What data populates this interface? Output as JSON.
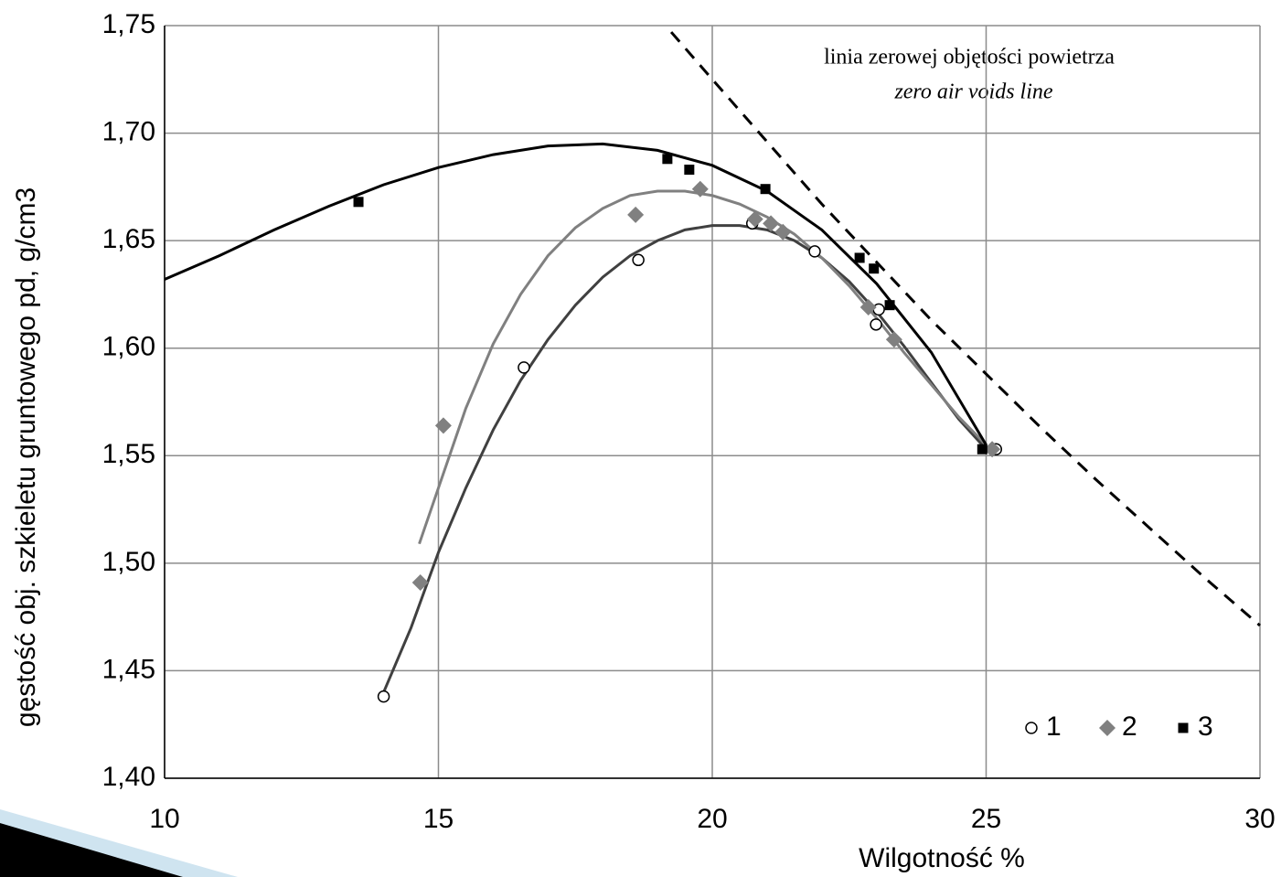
{
  "chart_data": {
    "type": "scatter",
    "x_label": "Wilgotność  %",
    "y_label": "gęstość obj. szkieletu gruntowego pd, g/cm3",
    "annotation": [
      "linia zerowej objętości powietrza",
      "zero air voids line"
    ],
    "xlim": [
      10,
      30
    ],
    "ylim": [
      1.4,
      1.75
    ],
    "xticks": [
      10,
      15,
      20,
      25,
      30
    ],
    "yticks": [
      {
        "value": 1.4,
        "label": "1,40"
      },
      {
        "value": 1.45,
        "label": "1,45"
      },
      {
        "value": 1.5,
        "label": "1,50"
      },
      {
        "value": 1.55,
        "label": "1,55"
      },
      {
        "value": 1.6,
        "label": "1,60"
      },
      {
        "value": 1.65,
        "label": "1,65"
      },
      {
        "value": 1.7,
        "label": "1,70"
      },
      {
        "value": 1.75,
        "label": "1,75"
      }
    ],
    "grid": true,
    "legend": "lower right",
    "series": [
      {
        "name": "1",
        "marker": "circle",
        "color": "#000000",
        "line_color": "#404040",
        "x": [
          14.0,
          16.56,
          18.65,
          20.73,
          21.87,
          22.99,
          23.04,
          25.18
        ],
        "values": [
          1.438,
          1.591,
          1.641,
          1.658,
          1.645,
          1.611,
          1.618,
          1.553
        ],
        "fit": {
          "x": [
            14.0,
            14.5,
            15,
            15.5,
            16,
            16.5,
            17,
            17.5,
            18,
            18.5,
            19,
            19.5,
            20,
            20.5,
            21,
            21.5,
            22,
            22.5,
            23,
            23.5,
            24,
            24.5,
            25
          ],
          "values": [
            1.44,
            1.47,
            1.505,
            1.535,
            1.562,
            1.585,
            1.604,
            1.62,
            1.633,
            1.643,
            1.65,
            1.655,
            1.657,
            1.657,
            1.655,
            1.65,
            1.642,
            1.631,
            1.617,
            1.601,
            1.584,
            1.567,
            1.553
          ]
        }
      },
      {
        "name": "2",
        "marker": "diamond",
        "color": "#808080",
        "line_color": "#808080",
        "x": [
          14.67,
          15.09,
          18.6,
          19.78,
          20.78,
          21.07,
          21.29,
          22.85,
          23.32,
          25.11
        ],
        "values": [
          1.491,
          1.564,
          1.662,
          1.674,
          1.66,
          1.658,
          1.654,
          1.619,
          1.604,
          1.553
        ],
        "fit": {
          "x": [
            14.65,
            15,
            15.5,
            16,
            16.5,
            17,
            17.5,
            18,
            18.5,
            19,
            19.5,
            20,
            20.5,
            21,
            21.5,
            22,
            22.5,
            23,
            23.5,
            24,
            24.5,
            25
          ],
          "values": [
            1.509,
            1.535,
            1.572,
            1.602,
            1.625,
            1.643,
            1.656,
            1.665,
            1.671,
            1.673,
            1.673,
            1.671,
            1.667,
            1.661,
            1.653,
            1.642,
            1.629,
            1.614,
            1.598,
            1.583,
            1.568,
            1.555
          ]
        }
      },
      {
        "name": "3",
        "marker": "square",
        "color": "#000000",
        "line_color": "#000000",
        "x": [
          13.54,
          19.18,
          19.58,
          20.97,
          22.69,
          22.95,
          23.24,
          24.93
        ],
        "values": [
          1.668,
          1.688,
          1.683,
          1.674,
          1.642,
          1.637,
          1.62,
          1.553
        ],
        "fit": {
          "x": [
            10,
            11,
            12,
            13,
            14,
            15,
            16,
            17,
            18,
            19,
            20,
            21,
            22,
            23,
            24,
            25
          ],
          "values": [
            1.632,
            1.643,
            1.655,
            1.666,
            1.676,
            1.684,
            1.69,
            1.694,
            1.695,
            1.692,
            1.685,
            1.673,
            1.655,
            1.63,
            1.598,
            1.555
          ]
        }
      }
    ],
    "reference_line": {
      "color": "#000000",
      "dashed": true,
      "x": [
        19.25,
        20,
        21,
        22,
        23,
        24,
        25,
        26,
        27,
        28,
        29,
        30
      ],
      "values": [
        1.747,
        1.725,
        1.696,
        1.667,
        1.64,
        1.613,
        1.588,
        1.563,
        1.539,
        1.516,
        1.493,
        1.471
      ]
    }
  }
}
